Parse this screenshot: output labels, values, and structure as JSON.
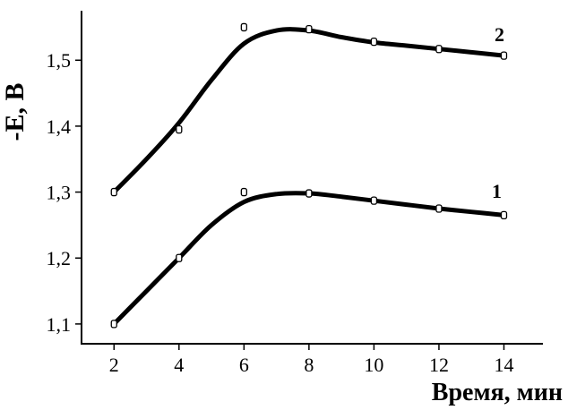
{
  "chart_data": {
    "type": "line",
    "xlabel": "Время, мин",
    "ylabel": "-E, В",
    "xlim": [
      1.0,
      15.2
    ],
    "ylim": [
      1.07,
      1.575
    ],
    "xticks": [
      2,
      4,
      6,
      8,
      10,
      12,
      14
    ],
    "yticks": [
      1.1,
      1.2,
      1.3,
      1.4,
      1.5
    ],
    "xtick_labels": [
      "2",
      "4",
      "6",
      "8",
      "10",
      "12",
      "14"
    ],
    "ytick_labels": [
      "1,1",
      "1,2",
      "1,3",
      "1,4",
      "1,5"
    ],
    "grid": false,
    "series": [
      {
        "name": "1",
        "points": [
          [
            2,
            1.1
          ],
          [
            4,
            1.2
          ],
          [
            6,
            1.3
          ],
          [
            8,
            1.298
          ],
          [
            10,
            1.287
          ],
          [
            12,
            1.275
          ],
          [
            14,
            1.265
          ]
        ],
        "curve": [
          [
            2,
            1.1
          ],
          [
            3,
            1.15
          ],
          [
            4,
            1.2
          ],
          [
            5,
            1.25
          ],
          [
            6,
            1.285
          ],
          [
            7,
            1.297
          ],
          [
            8,
            1.298
          ],
          [
            9,
            1.293
          ],
          [
            10,
            1.287
          ],
          [
            11,
            1.281
          ],
          [
            12,
            1.275
          ],
          [
            13,
            1.27
          ],
          [
            14,
            1.265
          ]
        ]
      },
      {
        "name": "2",
        "points": [
          [
            2,
            1.3
          ],
          [
            4,
            1.395
          ],
          [
            6,
            1.55
          ],
          [
            8,
            1.547
          ],
          [
            10,
            1.528
          ],
          [
            12,
            1.517
          ],
          [
            14,
            1.507
          ]
        ],
        "curve": [
          [
            2,
            1.3
          ],
          [
            3,
            1.35
          ],
          [
            4,
            1.405
          ],
          [
            5,
            1.47
          ],
          [
            6,
            1.525
          ],
          [
            7,
            1.545
          ],
          [
            8,
            1.545
          ],
          [
            9,
            1.535
          ],
          [
            10,
            1.527
          ],
          [
            11,
            1.522
          ],
          [
            12,
            1.517
          ],
          [
            13,
            1.512
          ],
          [
            14,
            1.507
          ]
        ]
      }
    ]
  }
}
